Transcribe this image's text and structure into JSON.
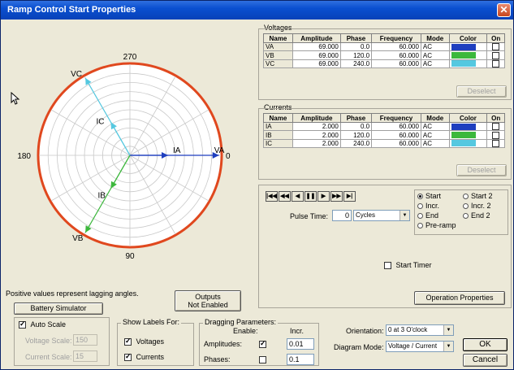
{
  "window": {
    "title": "Ramp Control Start Properties"
  },
  "polar": {
    "labels": {
      "top": "270",
      "left": "180",
      "right": "0",
      "bottom": "90"
    },
    "vectors": [
      {
        "name": "VA",
        "angle": 0,
        "magnitude": 69.0,
        "color": "#1f3fbf"
      },
      {
        "name": "VB",
        "angle": 120,
        "magnitude": 69.0,
        "color": "#3cb83c"
      },
      {
        "name": "VC",
        "angle": 240,
        "magnitude": 69.0,
        "color": "#55c8e0"
      },
      {
        "name": "IA",
        "angle": 0,
        "magnitude": 2.0,
        "color": "#1f3fbf"
      },
      {
        "name": "IB",
        "angle": 120,
        "magnitude": 2.0,
        "color": "#3cb83c"
      },
      {
        "name": "IC",
        "angle": 240,
        "magnitude": 2.0,
        "color": "#55c8e0"
      }
    ],
    "note": "Positive values represent lagging angles."
  },
  "voltages": {
    "title": "Voltages",
    "columns": [
      "Name",
      "Amplitude",
      "Phase",
      "Frequency",
      "Mode",
      "Color",
      "On"
    ],
    "rows": [
      {
        "name": "VA",
        "amplitude": "69.000",
        "phase": "0.0",
        "frequency": "60.000",
        "mode": "AC",
        "color": "#1f3fbf"
      },
      {
        "name": "VB",
        "amplitude": "69.000",
        "phase": "120.0",
        "frequency": "60.000",
        "mode": "AC",
        "color": "#3cb83c"
      },
      {
        "name": "VC",
        "amplitude": "69.000",
        "phase": "240.0",
        "frequency": "60.000",
        "mode": "AC",
        "color": "#55c8e0"
      }
    ],
    "deselect": "Deselect"
  },
  "currents": {
    "title": "Currents",
    "columns": [
      "Name",
      "Amplitude",
      "Phase",
      "Frequency",
      "Mode",
      "Color",
      "On"
    ],
    "rows": [
      {
        "name": "IA",
        "amplitude": "2.000",
        "phase": "0.0",
        "frequency": "60.000",
        "mode": "AC",
        "color": "#1f3fbf"
      },
      {
        "name": "IB",
        "amplitude": "2.000",
        "phase": "120.0",
        "frequency": "60.000",
        "mode": "AC",
        "color": "#3cb83c"
      },
      {
        "name": "IC",
        "amplitude": "2.000",
        "phase": "240.0",
        "frequency": "60.000",
        "mode": "AC",
        "color": "#55c8e0"
      }
    ],
    "deselect": "Deselect"
  },
  "playback": {
    "pulse_label": "Pulse Time:",
    "pulse_value": "0",
    "unit": "Cycles",
    "radios": [
      {
        "label": "Start",
        "selected": true
      },
      {
        "label": "Start 2",
        "selected": false
      },
      {
        "label": "Incr.",
        "selected": false
      },
      {
        "label": "Incr. 2",
        "selected": false
      },
      {
        "label": "End",
        "selected": false
      },
      {
        "label": "End 2",
        "selected": false
      },
      {
        "label": "Pre-ramp",
        "selected": false
      }
    ],
    "start_timer": "Start Timer",
    "operation_properties": "Operation Properties"
  },
  "buttons": {
    "battery": "Battery Simulator",
    "outputs_line1": "Outputs",
    "outputs_line2": "Not Enabled",
    "ok": "OK",
    "cancel": "Cancel"
  },
  "scale": {
    "auto_scale": "Auto Scale",
    "voltage_label": "Voltage Scale:",
    "voltage_value": "150",
    "current_label": "Current Scale:",
    "current_value": "15"
  },
  "show_labels": {
    "title": "Show Labels For:",
    "voltages": "Voltages",
    "currents": "Currents"
  },
  "dragging": {
    "title": "Dragging Parameters:",
    "enable": "Enable:",
    "incr": "Incr.",
    "amplitudes": "Amplitudes:",
    "amplitudes_value": "0.01",
    "phases": "Phases:",
    "phases_value": "0.1"
  },
  "orientation": {
    "label": "Orientation:",
    "value": "0 at 3 O'clock",
    "mode_label": "Diagram Mode:",
    "mode_value": "Voltage / Current"
  }
}
